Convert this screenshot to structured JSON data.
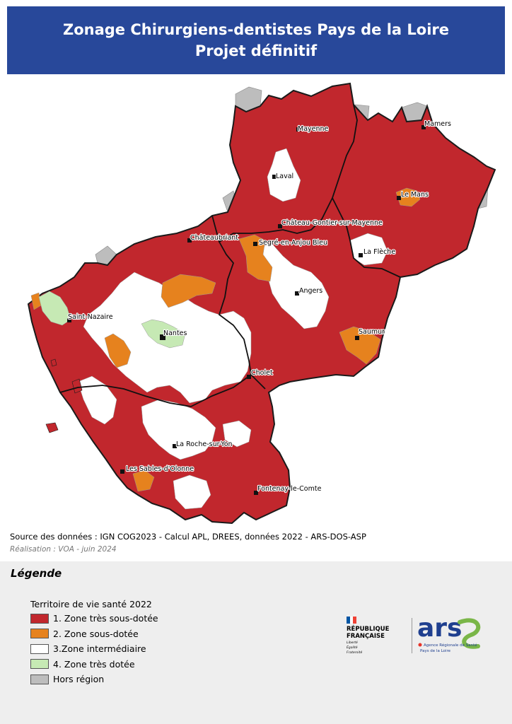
{
  "title": {
    "line1": "Zonage Chirurgiens-dentistes Pays de la Loire",
    "line2": "Projet définitif"
  },
  "map": {
    "colors": {
      "zone1": "#c1272d",
      "zone2": "#e6821e",
      "zone3": "#ffffff",
      "zone4": "#c6e9b4",
      "hors_region": "#bdbdbd",
      "border": "#1a1a1a"
    },
    "cities": [
      {
        "id": "mamers",
        "name": "Mamers"
      },
      {
        "id": "mayenne",
        "name": "Mayenne"
      },
      {
        "id": "laval",
        "name": "Laval"
      },
      {
        "id": "le-mans",
        "name": "Le Mans"
      },
      {
        "id": "chateau-gontier",
        "name": "Château-Gontier-sur-Mayenne"
      },
      {
        "id": "chateaubriant",
        "name": "Châteaubriant"
      },
      {
        "id": "segre",
        "name": "Segré-en-Anjou Bleu"
      },
      {
        "id": "la-fleche",
        "name": "La Flèche"
      },
      {
        "id": "angers",
        "name": "Angers"
      },
      {
        "id": "saint-nazaire",
        "name": "Saint-Nazaire"
      },
      {
        "id": "nantes",
        "name": "Nantes"
      },
      {
        "id": "saumur",
        "name": "Saumur"
      },
      {
        "id": "cholet",
        "name": "Cholet"
      },
      {
        "id": "la-roche-sur-yon",
        "name": "La Roche-sur-Yon"
      },
      {
        "id": "les-sables",
        "name": "Les Sables-d'Olonne"
      },
      {
        "id": "fontenay",
        "name": "Fontenay-le-Comte"
      }
    ]
  },
  "source": "Source des données : IGN COG2023 - Calcul APL, DREES, données 2022 - ARS-DOS-ASP",
  "credit": "Réalisation : VOA - juin 2024",
  "legend": {
    "title": "Légende",
    "subtitle": "Territoire de vie santé 2022",
    "items": [
      {
        "label": "1. Zone très sous-dotée",
        "color": "#c1272d"
      },
      {
        "label": "2. Zone sous-dotée",
        "color": "#e6821e"
      },
      {
        "label": "3.Zone intermédiaire",
        "color": "#ffffff"
      },
      {
        "label": "4. Zone très dotée",
        "color": "#c6e9b4"
      },
      {
        "label": "Hors région",
        "color": "#bdbdbd"
      }
    ]
  },
  "logos": {
    "rf_line1": "RÉPUBLIQUE",
    "rf_line2": "FRANÇAISE",
    "rf_motto1": "Liberté",
    "rf_motto2": "Égalité",
    "rf_motto3": "Fraternité",
    "ars_text": "ars",
    "ars_sub1": "Agence Régionale de Santé",
    "ars_sub2": "Pays de la Loire",
    "ars_color": "#1f3f8f",
    "ars_accent": "#7ab648"
  }
}
